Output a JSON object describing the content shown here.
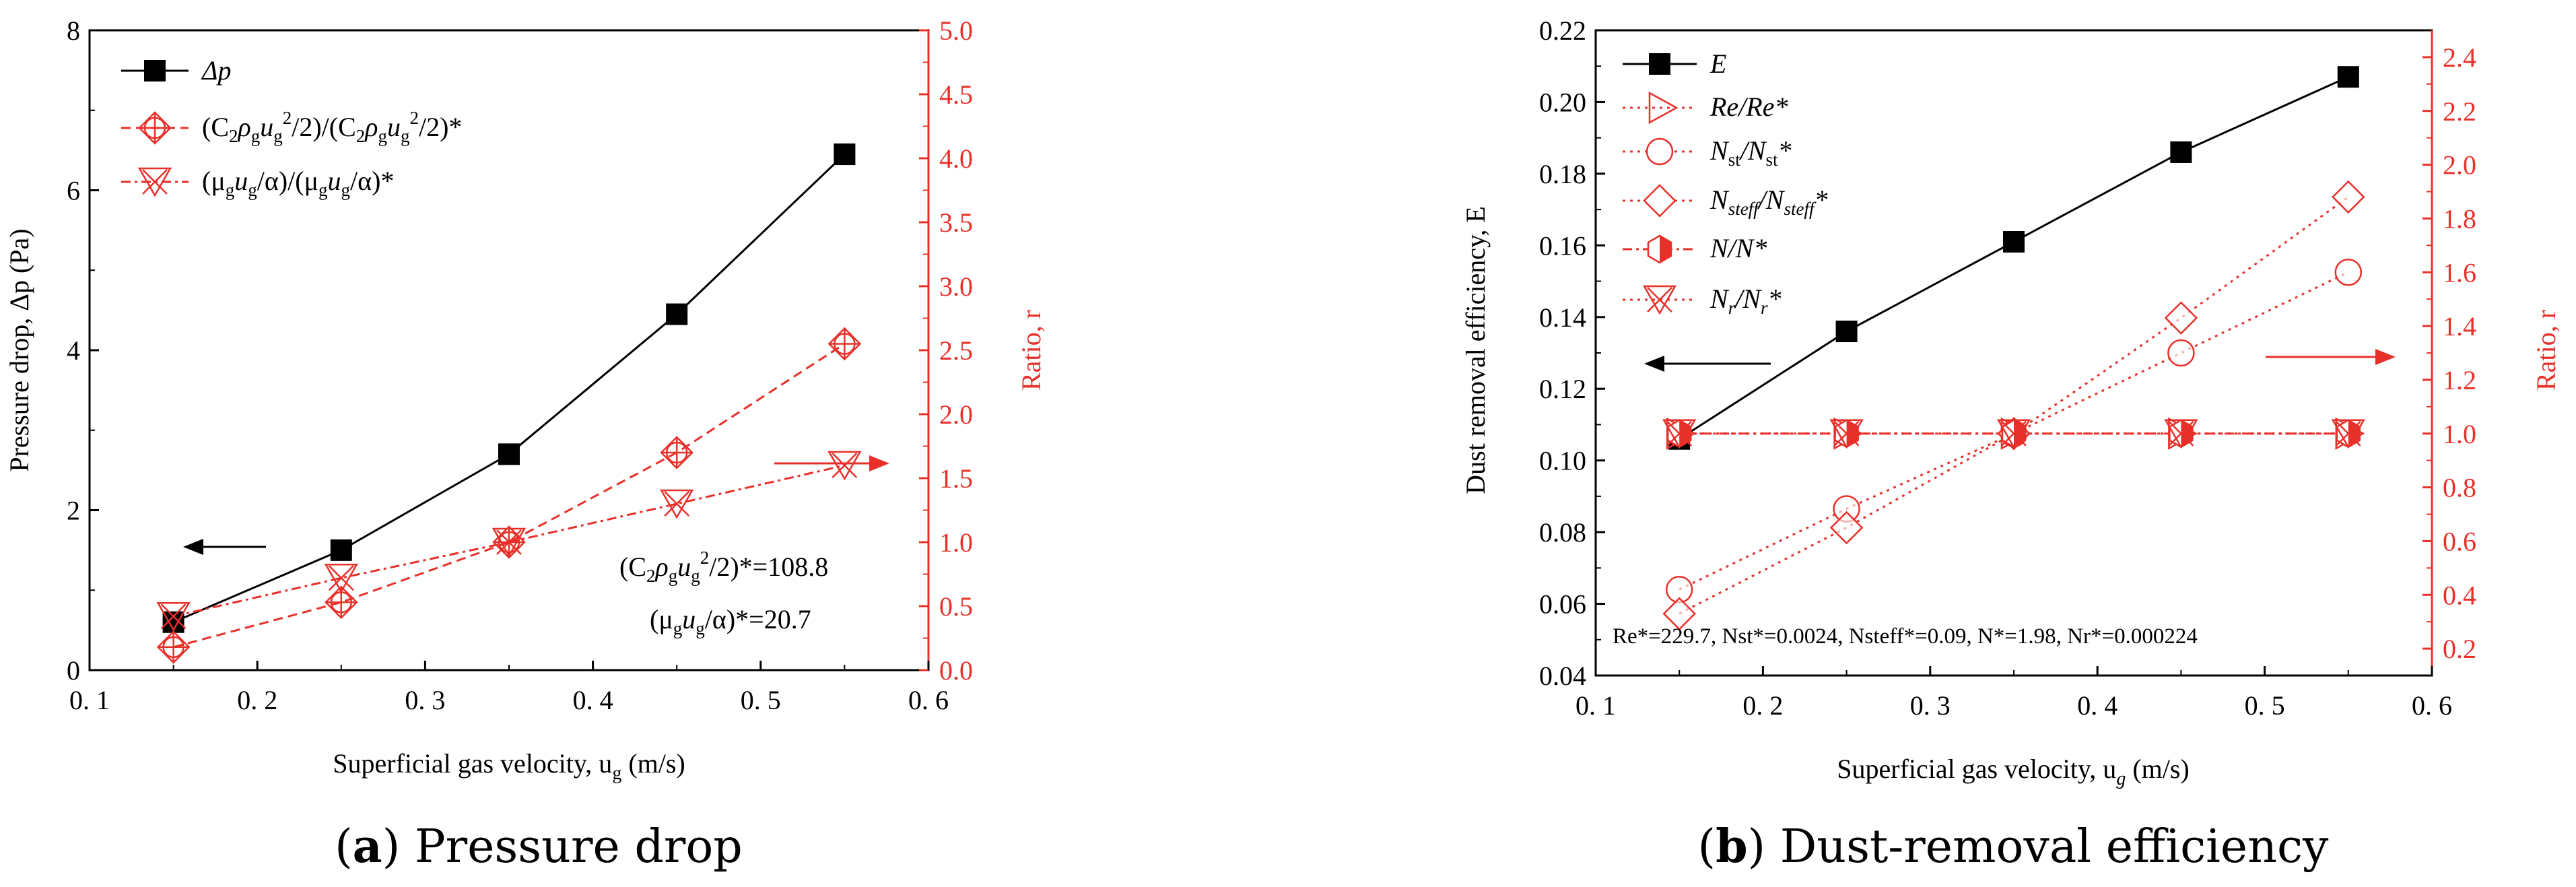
{
  "chart_data": [
    {
      "type": "line",
      "caption_letter": "a",
      "caption_rest": ") Pressure drop",
      "caption_open": "(",
      "xlabel": "Superficial gas velocity, u",
      "xlabel_sub": "g",
      "xlabel_tail": " (m/s)",
      "ylabel_left": "Pressure drop, Δp (Pa)",
      "ylabel_right": "Ratio, r",
      "xlim": [
        0.1,
        0.6
      ],
      "ylim_left": [
        0,
        8
      ],
      "ylim_right": [
        0,
        5
      ],
      "xticks": [
        "0.1",
        "0.2",
        "0.3",
        "0.4",
        "0.5",
        "0.6"
      ],
      "yticks_left": [
        "0",
        "2",
        "4",
        "6",
        "8"
      ],
      "yticks_right": [
        "0.0",
        "0.5",
        "1.0",
        "1.5",
        "2.0",
        "2.5",
        "3.0",
        "3.5",
        "4.0",
        "4.5",
        "5.0"
      ],
      "x": [
        0.15,
        0.25,
        0.35,
        0.45,
        0.55
      ],
      "series": [
        {
          "name": "Δp",
          "axis": "left",
          "marker": "filled-square",
          "style": "solid",
          "color": "#000000",
          "values": [
            0.6,
            1.5,
            2.7,
            4.45,
            6.45
          ]
        },
        {
          "name": "(C2ρgug2/2)/(C2ρgug2/2)*",
          "axis": "right",
          "marker": "circle-plus-diamond",
          "style": "dashed",
          "color": "#e8302a",
          "values": [
            0.18,
            0.53,
            1.0,
            1.7,
            2.55
          ]
        },
        {
          "name": "(μgug/α)/(μgug/α)*",
          "axis": "right",
          "marker": "triangle-x",
          "style": "dashdot",
          "color": "#e8302a",
          "values": [
            0.42,
            0.72,
            1.0,
            1.3,
            1.6
          ]
        }
      ],
      "legend_text": {
        "s1": "Δp",
        "s2_parts": [
          "(C",
          "2",
          "ρ",
          "g",
          "u",
          "g",
          "2",
          "/2)/(C",
          "2",
          "ρ",
          "g",
          "u",
          "g",
          "2",
          "/2)*"
        ],
        "s3_parts": [
          "(μ",
          "g",
          "u",
          "g",
          "/α)/(μ",
          "g",
          "u",
          "g",
          "/α)*"
        ]
      },
      "annotations": {
        "line1_parts": [
          "(C",
          "2",
          "ρ",
          "g",
          "u",
          "g",
          "2",
          "/2)*=108.8"
        ],
        "line2_parts": [
          "(μ",
          "g",
          "u",
          "g",
          "/α)*=20.7"
        ]
      }
    },
    {
      "type": "line",
      "caption_letter": "b",
      "caption_rest": ") Dust-removal efficiency",
      "caption_open": "(",
      "xlabel": "Superficial gas velocity, u",
      "xlabel_sub": "g",
      "xlabel_tail": " (m/s)",
      "ylabel_left": "Dust removal efficiency, E",
      "ylabel_right": "Ratio, r",
      "xlim": [
        0.1,
        0.6
      ],
      "ylim_left": [
        0.04,
        0.22
      ],
      "ylim_right": [
        0.1,
        2.5
      ],
      "xticks": [
        "0.1",
        "0.2",
        "0.3",
        "0.4",
        "0.5",
        "0.6"
      ],
      "yticks_left": [
        "0.04",
        "0.06",
        "0.08",
        "0.10",
        "0.12",
        "0.14",
        "0.16",
        "0.18",
        "0.20",
        "0.22"
      ],
      "yticks_right": [
        "0.2",
        "0.4",
        "0.6",
        "0.8",
        "1.0",
        "1.2",
        "1.4",
        "1.6",
        "1.8",
        "2.0",
        "2.2",
        "2.4"
      ],
      "x": [
        0.15,
        0.25,
        0.35,
        0.45,
        0.55
      ],
      "series": [
        {
          "name": "E",
          "axis": "left",
          "marker": "filled-square",
          "style": "solid",
          "color": "#000000",
          "values": [
            0.106,
            0.136,
            0.161,
            0.186,
            0.207
          ]
        },
        {
          "name": "Re/Re*",
          "axis": "right",
          "marker": "triangle-right",
          "style": "dotted",
          "color": "#e8302a",
          "values": [
            1.0,
            1.0,
            1.0,
            1.0,
            1.0
          ]
        },
        {
          "name": "Nst/Nst*",
          "axis": "right",
          "marker": "circle",
          "style": "dotted",
          "color": "#e8302a",
          "values": [
            0.42,
            0.72,
            1.0,
            1.3,
            1.6
          ]
        },
        {
          "name": "Nsteff/Nsteff*",
          "axis": "right",
          "marker": "diamond",
          "style": "dotted",
          "color": "#e8302a",
          "values": [
            0.33,
            0.65,
            1.0,
            1.43,
            1.88
          ]
        },
        {
          "name": "N/N*",
          "axis": "right",
          "marker": "half-hexagon",
          "style": "dashdot",
          "color": "#e8302a",
          "values": [
            1.0,
            1.0,
            1.0,
            1.0,
            1.0
          ]
        },
        {
          "name": "Nr/Nr*",
          "axis": "right",
          "marker": "triangle-x",
          "style": "dotted",
          "color": "#e8302a",
          "values": [
            1.0,
            1.0,
            1.0,
            1.0,
            1.0
          ]
        }
      ],
      "legend_text": {
        "s1": "E",
        "s2": "Re/Re*",
        "s3_parts": [
          "N",
          "st",
          "/N",
          "st",
          "*"
        ],
        "s4_parts": [
          "N",
          "steff",
          "/N",
          "steff",
          "*"
        ],
        "s5": "N/N*",
        "s6_parts": [
          "N",
          "r",
          "/N",
          "r",
          "*"
        ]
      },
      "annotations": {
        "line1": "Re*=229.7, Nst*=0.0024, Nsteff*=0.09, N*=1.98, Nr*=0.000224"
      }
    }
  ],
  "colors": {
    "black": "#000000",
    "red": "#e8302a"
  }
}
